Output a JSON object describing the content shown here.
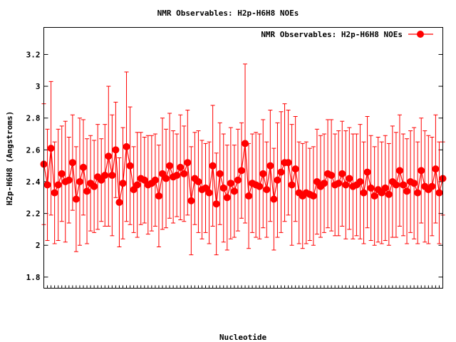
{
  "chart_data": {
    "type": "scatter",
    "title": "NMR Observables: H2p-H6H8 NOEs",
    "xlabel": "Nucleotide",
    "ylabel": "H2p-H6H8 (Angstroms)",
    "ylim": [
      1.73,
      3.37
    ],
    "yticks": [
      1.8,
      2,
      2.2,
      2.4,
      2.6,
      2.8,
      3,
      3.2
    ],
    "ytick_labels": [
      "1.8",
      "2",
      "2.2",
      "2.4",
      "2.6",
      "2.8",
      "3",
      "3.2"
    ],
    "legend_position": "top-right",
    "grid": false,
    "color": "#ff0000",
    "series": [
      {
        "name": "NMR Observables: H2p-H6H8 NOEs",
        "values": [
          2.51,
          2.38,
          2.61,
          2.33,
          2.38,
          2.45,
          2.4,
          2.41,
          2.52,
          2.29,
          2.4,
          2.49,
          2.34,
          2.39,
          2.37,
          2.43,
          2.41,
          2.44,
          2.56,
          2.44,
          2.6,
          2.27,
          2.39,
          2.62,
          2.5,
          2.35,
          2.38,
          2.42,
          2.41,
          2.38,
          2.39,
          2.41,
          2.31,
          2.45,
          2.42,
          2.5,
          2.43,
          2.44,
          2.49,
          2.45,
          2.52,
          2.28,
          2.42,
          2.4,
          2.35,
          2.36,
          2.33,
          2.5,
          2.26,
          2.45,
          2.36,
          2.3,
          2.39,
          2.34,
          2.41,
          2.47,
          2.64,
          2.31,
          2.39,
          2.38,
          2.37,
          2.45,
          2.35,
          2.5,
          2.29,
          2.41,
          2.46,
          2.52,
          2.52,
          2.38,
          2.48,
          2.33,
          2.31,
          2.33,
          2.32,
          2.31,
          2.4,
          2.37,
          2.39,
          2.45,
          2.44,
          2.38,
          2.39,
          2.45,
          2.38,
          2.42,
          2.37,
          2.38,
          2.4,
          2.33,
          2.46,
          2.36,
          2.31,
          2.35,
          2.33,
          2.36,
          2.32,
          2.4,
          2.38,
          2.47,
          2.38,
          2.34,
          2.4,
          2.39,
          2.33,
          2.47,
          2.37,
          2.35,
          2.37,
          2.48,
          2.33,
          2.42
        ],
        "errors": [
          0.38,
          0.35,
          0.42,
          0.32,
          0.35,
          0.3,
          0.38,
          0.27,
          0.3,
          0.33,
          0.4,
          0.3,
          0.33,
          0.3,
          0.29,
          0.33,
          0.26,
          0.32,
          0.44,
          0.38,
          0.3,
          0.28,
          0.35,
          0.47,
          0.37,
          0.27,
          0.33,
          0.29,
          0.27,
          0.31,
          0.3,
          0.29,
          0.32,
          0.35,
          0.31,
          0.33,
          0.29,
          0.26,
          0.33,
          0.3,
          0.33,
          0.34,
          0.29,
          0.32,
          0.31,
          0.28,
          0.32,
          0.38,
          0.32,
          0.32,
          0.34,
          0.33,
          0.35,
          0.29,
          0.32,
          0.3,
          0.5,
          0.33,
          0.31,
          0.33,
          0.33,
          0.34,
          0.3,
          0.35,
          0.32,
          0.36,
          0.38,
          0.37,
          0.33,
          0.38,
          0.33,
          0.32,
          0.33,
          0.32,
          0.29,
          0.31,
          0.33,
          0.32,
          0.31,
          0.34,
          0.35,
          0.32,
          0.33,
          0.33,
          0.34,
          0.32,
          0.33,
          0.32,
          0.36,
          0.32,
          0.35,
          0.33,
          0.31,
          0.33,
          0.32,
          0.33,
          0.32,
          0.35,
          0.33,
          0.35,
          0.32,
          0.33,
          0.32,
          0.35,
          0.32,
          0.33,
          0.35,
          0.34,
          0.31,
          0.34,
          0.32,
          0.23
        ]
      }
    ]
  }
}
